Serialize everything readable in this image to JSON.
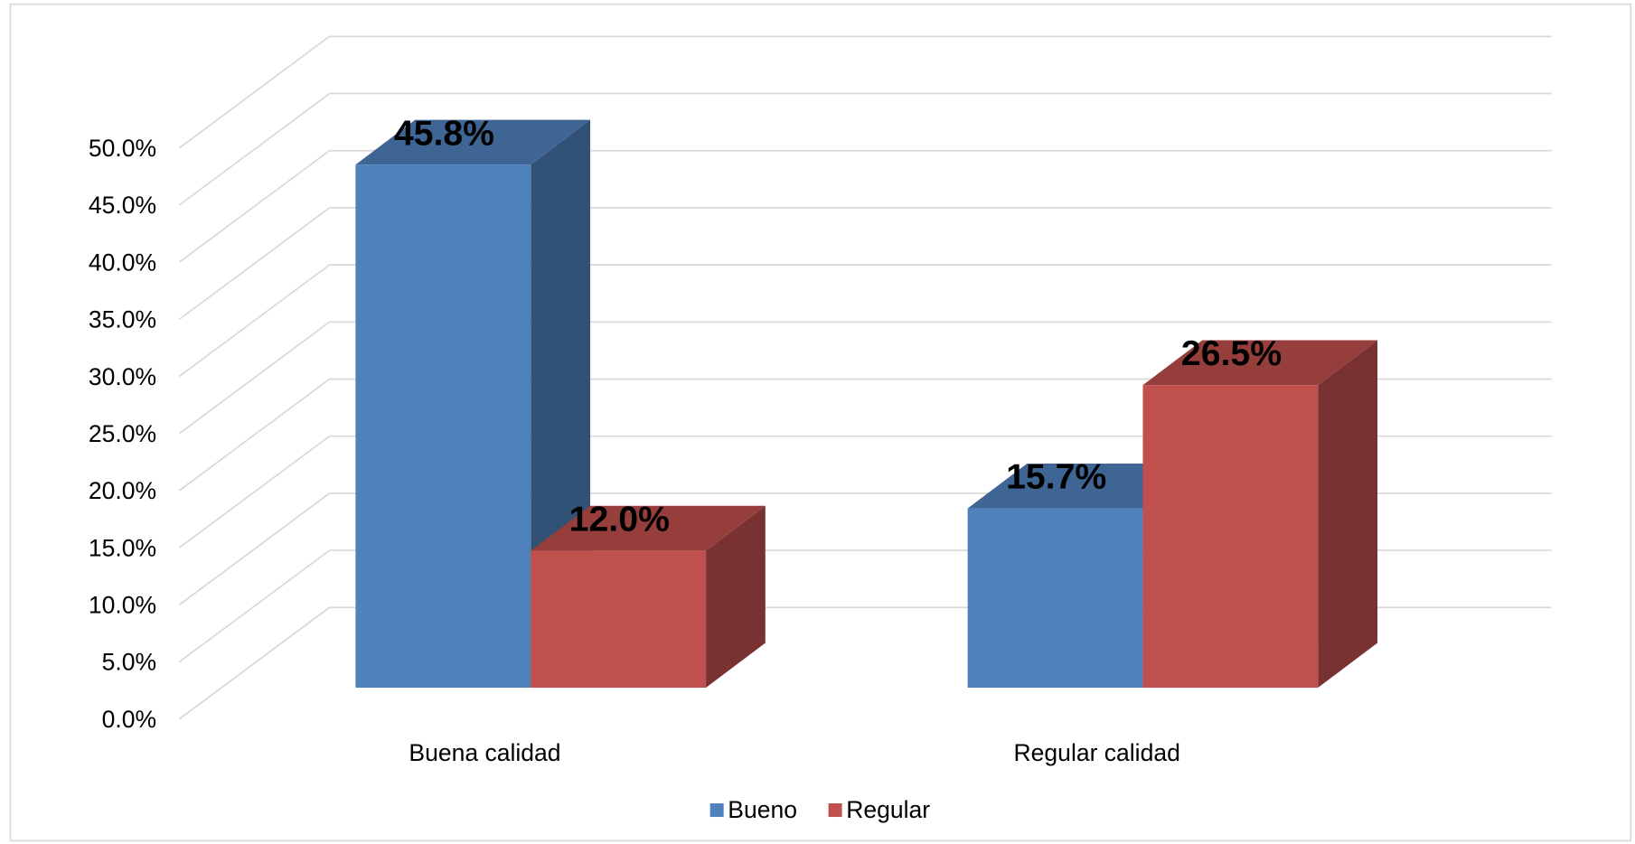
{
  "chart_data": {
    "type": "bar3d",
    "categories": [
      "Buena calidad",
      "Regular calidad"
    ],
    "series": [
      {
        "name": "Bueno",
        "color": "#4f81bd",
        "values": [
          45.8,
          15.7
        ],
        "value_labels": [
          "45.8%",
          "15.7%"
        ]
      },
      {
        "name": "Regular",
        "color": "#c0504d",
        "values": [
          12.0,
          26.5
        ],
        "value_labels": [
          "12.0%",
          "26.5%"
        ]
      }
    ],
    "ylim": [
      0,
      50
    ],
    "yticks": [
      {
        "value": 0,
        "label": "0.0%"
      },
      {
        "value": 5,
        "label": "5.0%"
      },
      {
        "value": 10,
        "label": "10.0%"
      },
      {
        "value": 15,
        "label": "15.0%"
      },
      {
        "value": 20,
        "label": "20.0%"
      },
      {
        "value": 25,
        "label": "25.0%"
      },
      {
        "value": 30,
        "label": "30.0%"
      },
      {
        "value": 35,
        "label": "35.0%"
      },
      {
        "value": 40,
        "label": "40.0%"
      },
      {
        "value": 45,
        "label": "45.0%"
      },
      {
        "value": 50,
        "label": "50.0%"
      }
    ],
    "grid": true,
    "legend": "bottom"
  }
}
